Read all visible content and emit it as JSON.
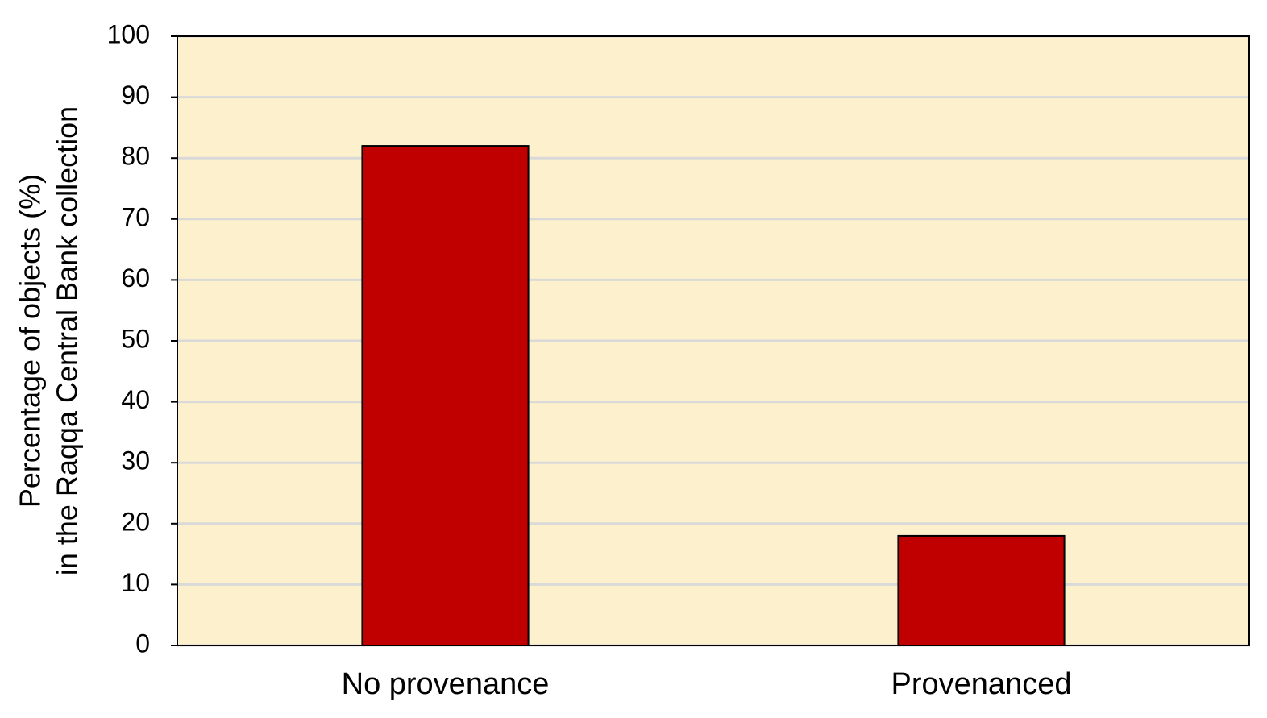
{
  "chart_data": {
    "type": "bar",
    "ylabel": [
      "Percentage of objects (%)",
      "in the Raqqa Central Bank collection"
    ],
    "categories": [
      "No provenance",
      "Provenanced"
    ],
    "values": [
      82,
      18
    ],
    "color": "#c00000",
    "ylim": [
      0,
      100
    ],
    "yticks": [
      0,
      10,
      20,
      30,
      40,
      50,
      60,
      70,
      80,
      90,
      100
    ],
    "grid": true
  }
}
